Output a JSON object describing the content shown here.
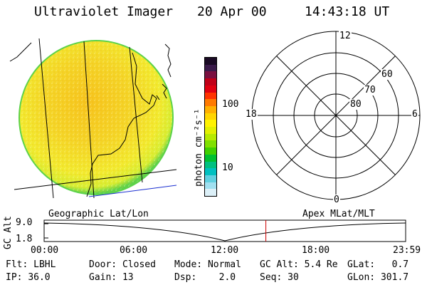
{
  "header": {
    "instrument": "Ultraviolet Imager",
    "date": "20 Apr 00",
    "time": "14:43:18 UT"
  },
  "colorbar": {
    "unit_label": "photon cm⁻²s⁻¹",
    "tick_labels": [
      "100",
      "10"
    ],
    "colors_top_to_bottom": [
      "#1a0a24",
      "#3a1a4a",
      "#7a1040",
      "#c00018",
      "#e00010",
      "#ff3300",
      "#ff7a00",
      "#ffb000",
      "#ffd500",
      "#fff200",
      "#e2f000",
      "#b6ea00",
      "#80e000",
      "#40d000",
      "#00c030",
      "#00c080",
      "#00c0c0",
      "#60d0e0",
      "#a0e0f0",
      "#dcf0f8"
    ]
  },
  "polar_grid": {
    "latitude_labels": [
      "60",
      "70",
      "80"
    ],
    "mlt_labels": {
      "top": "12",
      "left": "18",
      "right": "6",
      "bottom": "0"
    }
  },
  "panel_labels": {
    "left": "Geographic Lat/Lon",
    "right": "Apex MLat/MLT"
  },
  "altitude_plot": {
    "axis_label": "GC Alt",
    "y_ticks": [
      "9.0",
      "1.8"
    ],
    "x_ticks": [
      "00:00",
      "06:00",
      "12:00",
      "18:00",
      "23:59"
    ],
    "current_time_marker_hours": 14.72,
    "marker_color": "#cc0000"
  },
  "info": {
    "row1": [
      {
        "label": "Flt:",
        "value": "LBHL"
      },
      {
        "label": "Door:",
        "value": "Closed"
      },
      {
        "label": "Mode:",
        "value": "Normal"
      },
      {
        "label": "GC Alt:",
        "value": "5.4 Re"
      },
      {
        "label": "GLat:",
        "value": "0.7"
      }
    ],
    "row2": [
      {
        "label": "IP:",
        "value": "36.0"
      },
      {
        "label": "Gain:",
        "value": "13"
      },
      {
        "label": "Dsp:",
        "value": "2.0"
      },
      {
        "label": "Seq:",
        "value": "30"
      },
      {
        "label": "GLon:",
        "value": "301.7"
      }
    ]
  }
}
